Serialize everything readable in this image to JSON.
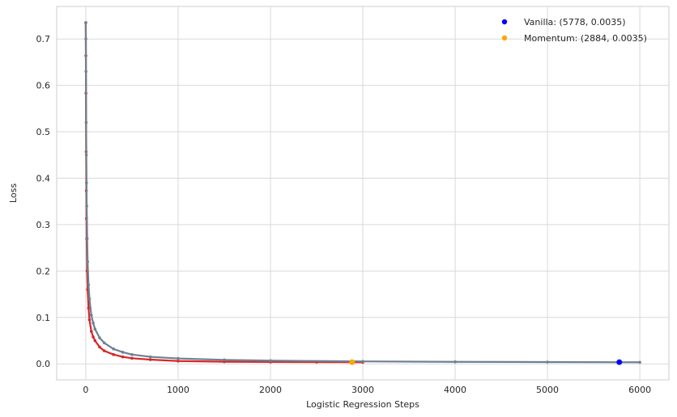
{
  "chart_data": {
    "type": "line",
    "title": "",
    "xlabel": "Logistic Regression Steps",
    "ylabel": "Loss",
    "xlim": [
      -315,
      6315
    ],
    "ylim": [
      -0.0345,
      0.77
    ],
    "xticks": [
      0,
      1000,
      2000,
      3000,
      4000,
      5000,
      6000
    ],
    "yticks": [
      0.0,
      0.1,
      0.2,
      0.3,
      0.4,
      0.5,
      0.6,
      0.7
    ],
    "xtick_labels": [
      "0",
      "1000",
      "2000",
      "3000",
      "4000",
      "5000",
      "6000"
    ],
    "ytick_labels": [
      "0.0",
      "0.1",
      "0.2",
      "0.3",
      "0.4",
      "0.5",
      "0.6",
      "0.7"
    ],
    "grid": true,
    "legend_position": "top-right",
    "series": [
      {
        "color": "#d62728",
        "x": [
          0,
          1,
          2,
          4,
          6,
          8,
          10,
          15,
          20,
          30,
          40,
          60,
          80,
          100,
          150,
          200,
          300,
          400,
          500,
          700,
          1000,
          1500,
          2000,
          2500,
          2884,
          3000
        ],
        "values": [
          0.735,
          0.664,
          0.583,
          0.457,
          0.373,
          0.313,
          0.27,
          0.2,
          0.16,
          0.12,
          0.095,
          0.07,
          0.058,
          0.05,
          0.036,
          0.028,
          0.02,
          0.015,
          0.012,
          0.009,
          0.006,
          0.0045,
          0.004,
          0.0037,
          0.0035,
          0.0034
        ]
      },
      {
        "color": "#708090",
        "x": [
          0,
          1,
          2,
          4,
          6,
          8,
          10,
          15,
          20,
          30,
          40,
          60,
          80,
          100,
          150,
          200,
          300,
          400,
          500,
          700,
          1000,
          1500,
          2000,
          3000,
          4000,
          5000,
          5778,
          6000
        ],
        "values": [
          0.735,
          0.7,
          0.63,
          0.52,
          0.45,
          0.39,
          0.34,
          0.27,
          0.22,
          0.17,
          0.14,
          0.105,
          0.088,
          0.075,
          0.056,
          0.045,
          0.032,
          0.025,
          0.02,
          0.015,
          0.0115,
          0.0085,
          0.0068,
          0.0052,
          0.0043,
          0.0038,
          0.0035,
          0.0034
        ]
      }
    ],
    "markers": [
      {
        "name": "Vanilla",
        "x": 5778,
        "y": 0.0035,
        "color": "#0000ff"
      },
      {
        "name": "Momentum",
        "x": 2884,
        "y": 0.0035,
        "color": "#ffa500"
      }
    ],
    "legend": [
      {
        "label": "Vanilla: (5778, 0.0035)",
        "color": "#0000ff"
      },
      {
        "label": "Momentum: (2884, 0.0035)",
        "color": "#ffa500"
      }
    ]
  }
}
